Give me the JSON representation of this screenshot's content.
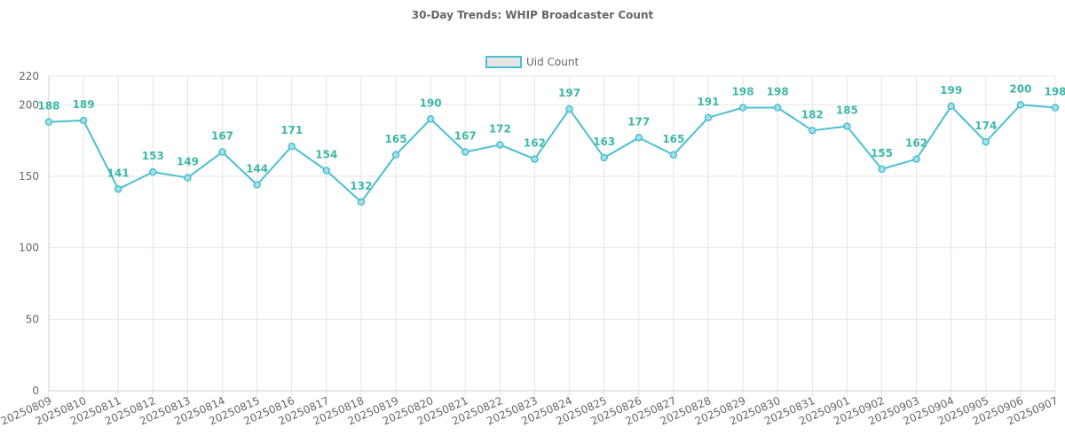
{
  "chart_data": {
    "type": "line",
    "title": "30-Day Trends: WHIP Broadcaster Count",
    "x": [
      "20250809",
      "20250810",
      "20250811",
      "20250812",
      "20250813",
      "20250814",
      "20250815",
      "20250816",
      "20250817",
      "20250818",
      "20250819",
      "20250820",
      "20250821",
      "20250822",
      "20250823",
      "20250824",
      "20250825",
      "20250826",
      "20250827",
      "20250828",
      "20250829",
      "20250830",
      "20250831",
      "20250901",
      "20250902",
      "20250903",
      "20250904",
      "20250905",
      "20250906",
      "20250907"
    ],
    "series": [
      {
        "name": "Uid Count",
        "values": [
          188,
          189,
          141,
          153,
          149,
          167,
          144,
          171,
          154,
          132,
          165,
          190,
          167,
          172,
          162,
          197,
          163,
          177,
          165,
          191,
          198,
          198,
          182,
          185,
          155,
          162,
          199,
          174,
          200,
          198
        ]
      }
    ],
    "ylim": [
      0,
      220
    ],
    "yticks": [
      0,
      50,
      100,
      150,
      200,
      220
    ],
    "grid": true,
    "legend": "top-center",
    "colors": {
      "line": "#4bbfd1",
      "point_fill": "#a7dfe8",
      "label": "#3fb8a8",
      "legend_fill": "#e6e6e6"
    }
  }
}
